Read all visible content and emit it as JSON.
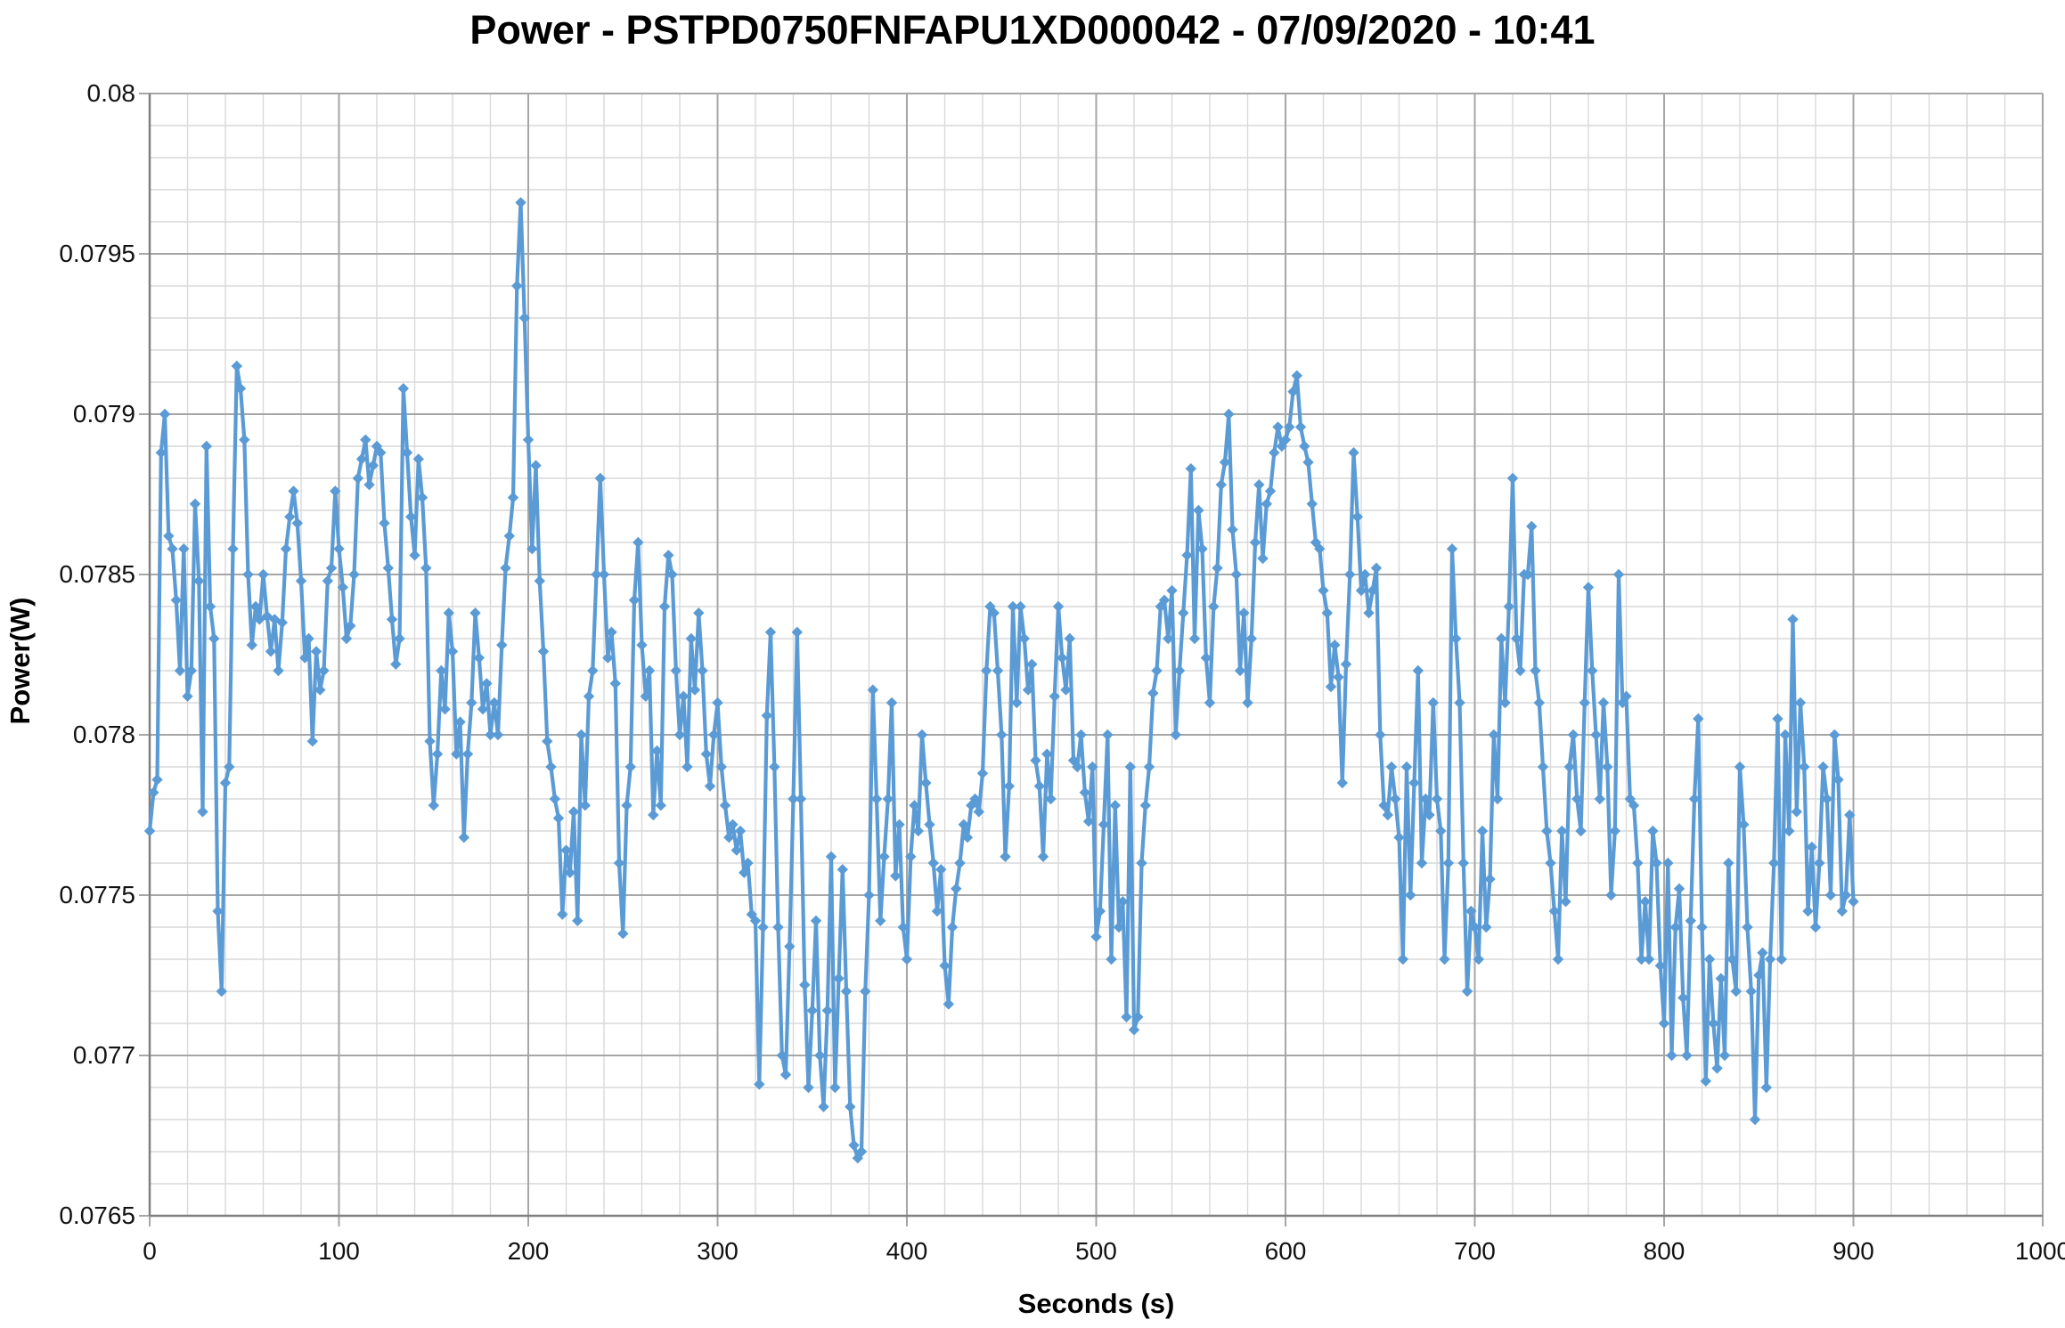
{
  "chart_data": {
    "type": "line",
    "title": "Power - PSTPD0750FNFAPU1XD000042 - 07/09/2020 - 10:41",
    "xlabel": "Seconds (s)",
    "ylabel": "Power(W)",
    "xlim": [
      0,
      1000
    ],
    "ylim": [
      0.0765,
      0.08
    ],
    "grid": true,
    "legend_position": "none",
    "x_major_tick_step": 100,
    "x_minor_tick_step": 20,
    "y_major_tick_step": 0.0005,
    "y_minor_tick_step": 0.0001,
    "x_tick_labels": [
      "0",
      "100",
      "200",
      "300",
      "400",
      "500",
      "600",
      "700",
      "800",
      "900",
      "1000"
    ],
    "x_tick_values": [
      0,
      100,
      200,
      300,
      400,
      500,
      600,
      700,
      800,
      900,
      1000
    ],
    "y_tick_labels": [
      "0.08",
      "0.0795",
      "0.079",
      "0.0785",
      "0.078",
      "0.0775",
      "0.077",
      "0.0765"
    ],
    "y_tick_values": [
      0.08,
      0.0795,
      0.079,
      0.0785,
      0.078,
      0.0775,
      0.077,
      0.0765
    ],
    "colors": {
      "series": "#5B9BD5",
      "grid_major": "#A6A6A6",
      "grid_minor": "#D9D9D9",
      "axis": "#808080",
      "text": "#121212",
      "title_text": "#000000"
    },
    "series": [
      {
        "name": "Power",
        "marker": "diamond",
        "x_start": 0,
        "x_step": 2,
        "x_end": 900,
        "y_unit": 1e-05,
        "y_e5": [
          7770,
          7782,
          7786,
          7888,
          7900,
          7862,
          7858,
          7842,
          7820,
          7858,
          7812,
          7820,
          7872,
          7848,
          7776,
          7890,
          7840,
          7830,
          7745,
          7720,
          7785,
          7790,
          7858,
          7915,
          7908,
          7892,
          7850,
          7828,
          7840,
          7836,
          7850,
          7837,
          7826,
          7836,
          7820,
          7835,
          7858,
          7868,
          7876,
          7866,
          7848,
          7824,
          7830,
          7798,
          7826,
          7814,
          7820,
          7848,
          7852,
          7876,
          7858,
          7846,
          7830,
          7834,
          7850,
          7880,
          7886,
          7892,
          7878,
          7884,
          7890,
          7888,
          7866,
          7852,
          7836,
          7822,
          7830,
          7908,
          7888,
          7868,
          7856,
          7886,
          7874,
          7852,
          7798,
          7778,
          7794,
          7820,
          7808,
          7838,
          7826,
          7794,
          7804,
          7768,
          7794,
          7810,
          7838,
          7824,
          7808,
          7816,
          7800,
          7810,
          7800,
          7828,
          7852,
          7862,
          7874,
          7940,
          7966,
          7930,
          7892,
          7858,
          7884,
          7848,
          7826,
          7798,
          7790,
          7780,
          7774,
          7744,
          7764,
          7757,
          7776,
          7742,
          7800,
          7778,
          7812,
          7820,
          7850,
          7880,
          7850,
          7824,
          7832,
          7816,
          7760,
          7738,
          7778,
          7790,
          7842,
          7860,
          7828,
          7812,
          7820,
          7775,
          7795,
          7778,
          7840,
          7856,
          7850,
          7820,
          7800,
          7812,
          7790,
          7830,
          7814,
          7838,
          7820,
          7794,
          7784,
          7800,
          7810,
          7790,
          7778,
          7768,
          7772,
          7764,
          7770,
          7757,
          7760,
          7744,
          7742,
          7691,
          7740,
          7806,
          7832,
          7790,
          7740,
          7700,
          7694,
          7734,
          7780,
          7832,
          7780,
          7722,
          7690,
          7714,
          7742,
          7700,
          7684,
          7714,
          7762,
          7690,
          7724,
          7758,
          7720,
          7684,
          7672,
          7668,
          7670,
          7720,
          7750,
          7814,
          7780,
          7742,
          7762,
          7780,
          7810,
          7756,
          7772,
          7740,
          7730,
          7762,
          7778,
          7770,
          7800,
          7785,
          7772,
          7760,
          7745,
          7758,
          7728,
          7716,
          7740,
          7752,
          7760,
          7772,
          7768,
          7778,
          7780,
          7776,
          7788,
          7820,
          7840,
          7838,
          7820,
          7800,
          7762,
          7784,
          7840,
          7810,
          7840,
          7830,
          7814,
          7822,
          7792,
          7784,
          7762,
          7794,
          7780,
          7812,
          7840,
          7824,
          7814,
          7830,
          7792,
          7790,
          7800,
          7782,
          7773,
          7790,
          7737,
          7745,
          7772,
          7800,
          7730,
          7778,
          7740,
          7748,
          7712,
          7790,
          7708,
          7712,
          7760,
          7778,
          7790,
          7813,
          7820,
          7840,
          7842,
          7830,
          7845,
          7800,
          7820,
          7838,
          7856,
          7883,
          7830,
          7870,
          7858,
          7824,
          7810,
          7840,
          7852,
          7878,
          7885,
          7900,
          7864,
          7850,
          7820,
          7838,
          7810,
          7830,
          7860,
          7878,
          7855,
          7872,
          7876,
          7888,
          7896,
          7890,
          7892,
          7896,
          7907,
          7912,
          7896,
          7890,
          7885,
          7872,
          7860,
          7858,
          7845,
          7838,
          7815,
          7828,
          7818,
          7785,
          7822,
          7850,
          7888,
          7868,
          7845,
          7850,
          7838,
          7845,
          7852,
          7800,
          7778,
          7775,
          7790,
          7780,
          7768,
          7730,
          7790,
          7750,
          7785,
          7820,
          7760,
          7780,
          7775,
          7810,
          7780,
          7770,
          7730,
          7760,
          7858,
          7830,
          7810,
          7760,
          7720,
          7745,
          7740,
          7730,
          7770,
          7740,
          7755,
          7800,
          7780,
          7830,
          7810,
          7840,
          7880,
          7830,
          7820,
          7850,
          7850,
          7865,
          7820,
          7810,
          7790,
          7770,
          7760,
          7745,
          7730,
          7770,
          7748,
          7790,
          7800,
          7780,
          7770,
          7810,
          7846,
          7820,
          7800,
          7780,
          7810,
          7790,
          7750,
          7770,
          7850,
          7810,
          7812,
          7780,
          7778,
          7760,
          7730,
          7748,
          7730,
          7770,
          7760,
          7728,
          7710,
          7760,
          7700,
          7740,
          7752,
          7718,
          7700,
          7742,
          7780,
          7805,
          7740,
          7692,
          7730,
          7710,
          7696,
          7724,
          7700,
          7760,
          7730,
          7720,
          7790,
          7772,
          7740,
          7720,
          7680,
          7725,
          7732,
          7690,
          7730,
          7760,
          7805,
          7730,
          7800,
          7770,
          7836,
          7776,
          7810,
          7790,
          7745,
          7765,
          7740,
          7760,
          7790,
          7780,
          7750,
          7800,
          7786,
          7745,
          7750,
          7775,
          7748
        ]
      }
    ]
  }
}
